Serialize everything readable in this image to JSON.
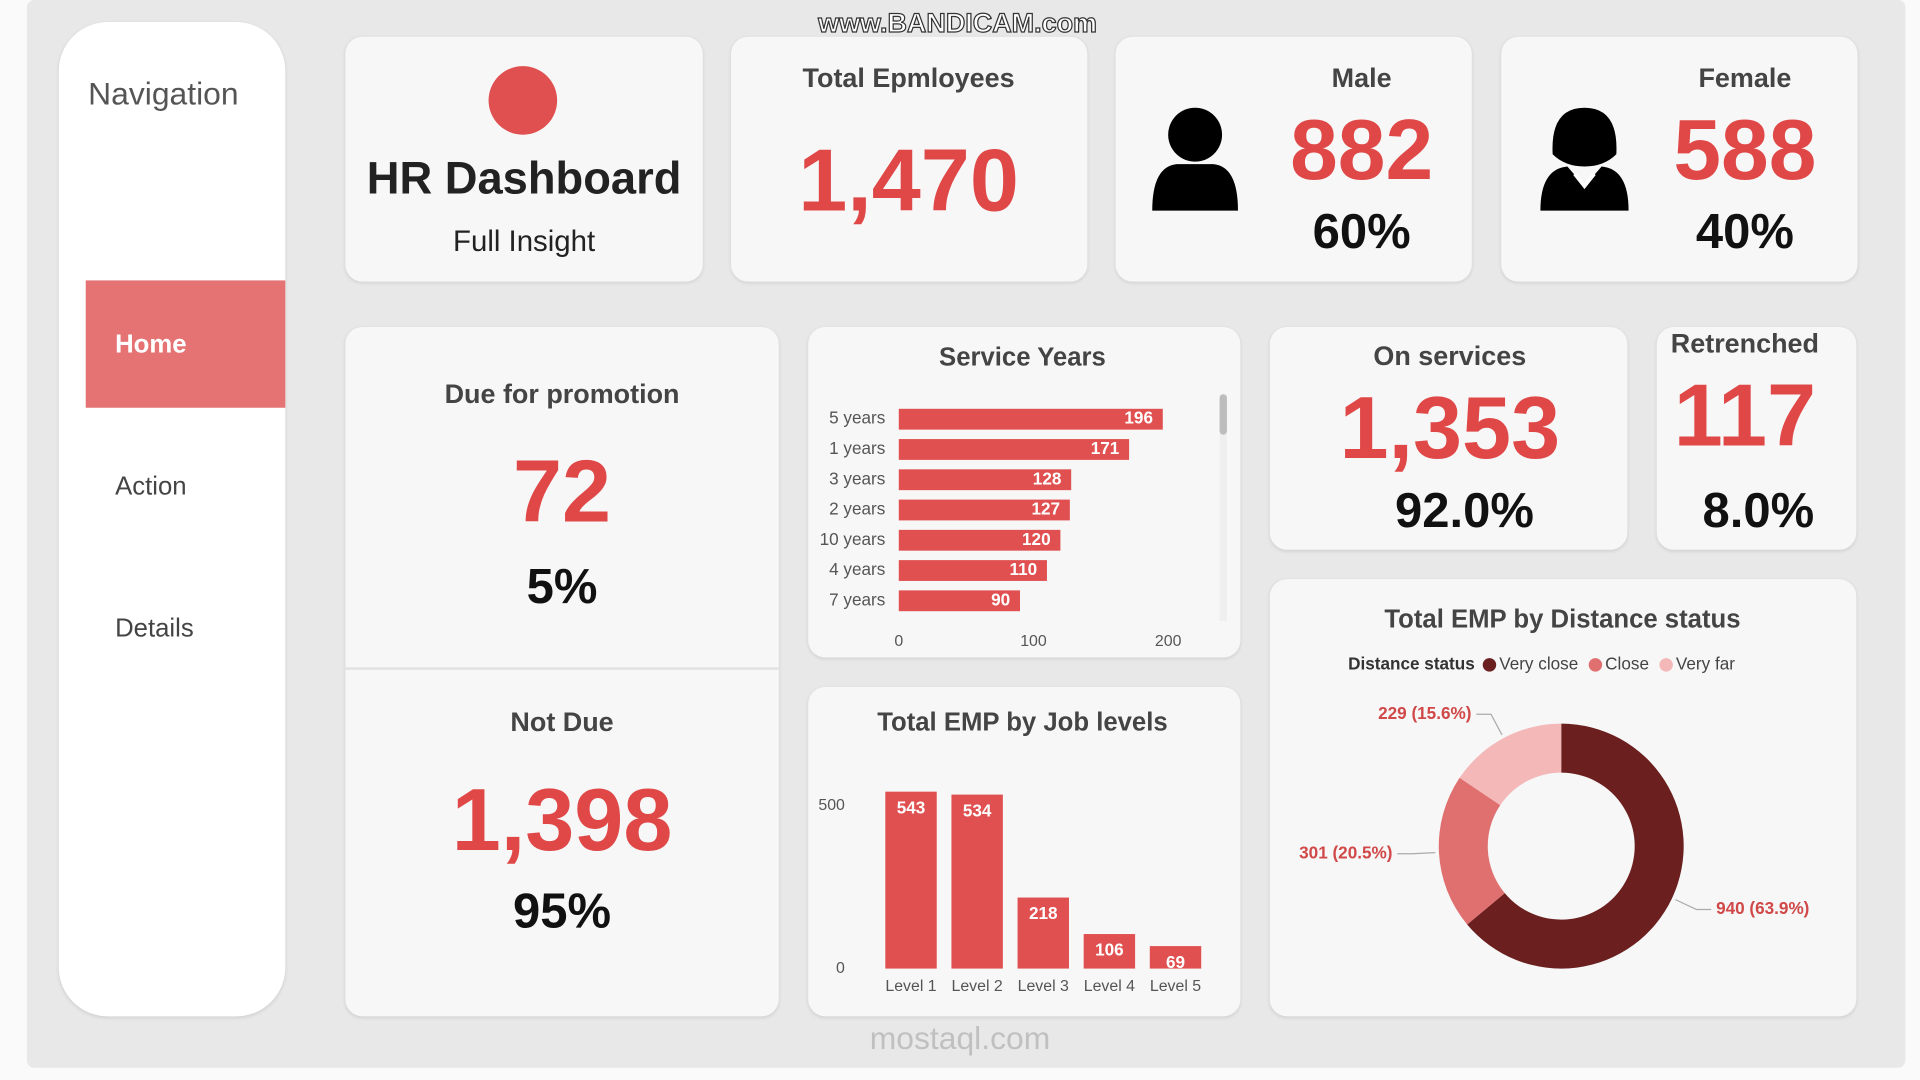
{
  "watermark": [
    "www.BANDICAM.com",
    "mostaql.com"
  ],
  "navigation": {
    "title": "Navigation",
    "items": [
      "Home",
      "Action",
      "Details"
    ]
  },
  "header": {
    "title": "HR Dashboard",
    "subtitle": "Full Insight"
  },
  "kpis": {
    "total": {
      "label": "Total Epmloyees",
      "value": "1,470"
    },
    "male": {
      "label": "Male",
      "value": "882",
      "share": "60%"
    },
    "female": {
      "label": "Female",
      "value": "588",
      "share": "40%"
    },
    "promotion": {
      "label": "Due for promotion",
      "value": "72",
      "share": "5%"
    },
    "not_due": {
      "label": "Not Due",
      "value": "1,398",
      "share": "95%"
    },
    "on_services": {
      "label": "On services",
      "value": "1,353",
      "share": "92.0%"
    },
    "retrenched": {
      "label": "Retrenched",
      "value": "117",
      "share": "8.0%"
    }
  },
  "chart_data": [
    {
      "type": "hbar",
      "title": "Service Years",
      "categories": [
        "5 years",
        "1 years",
        "3 years",
        "2 years",
        "10 years",
        "4 years",
        "7 years"
      ],
      "values": [
        196,
        171,
        128,
        127,
        120,
        110,
        90
      ],
      "color": "#e05050",
      "xlim": [
        0,
        230
      ],
      "xticks": [
        0,
        100,
        200
      ]
    },
    {
      "type": "bar",
      "title": "Total EMP by Job levels",
      "categories": [
        "Level 1",
        "Level 2",
        "Level 3",
        "Level 4",
        "Level 5"
      ],
      "values": [
        543,
        534,
        218,
        106,
        69
      ],
      "color": "#e05050",
      "ylim": [
        0,
        560
      ],
      "yticks": [
        0,
        500
      ]
    },
    {
      "type": "donut",
      "title": "Total EMP by Distance status",
      "legend_title": "Distance status",
      "categories": [
        "Very close",
        "Close",
        "Very far"
      ],
      "values": [
        940,
        301,
        229
      ],
      "value_labels": [
        "940 (63.9%)",
        "301 (20.5%)",
        "229 (15.6%)"
      ],
      "colors": [
        "#6b1f1f",
        "#e07070",
        "#f4b8b8"
      ]
    }
  ]
}
